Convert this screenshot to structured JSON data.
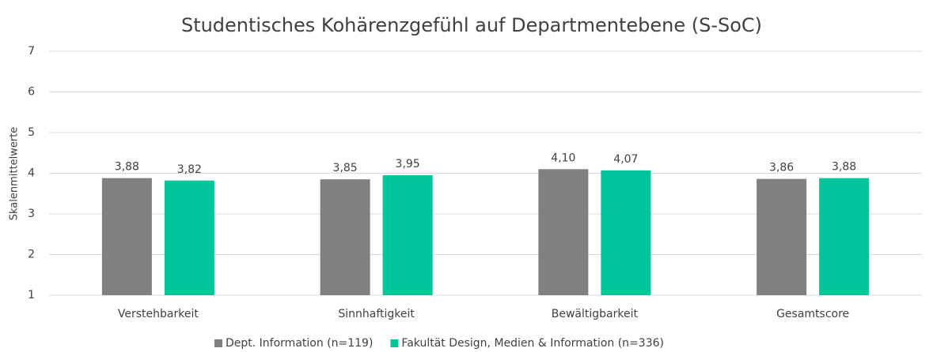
{
  "chart_data": {
    "type": "bar",
    "title": "Studentisches Kohärenzgefühl auf Departmentebene (S-SoC)",
    "y_label": "Skalenmittelwerte",
    "categories": [
      "Verstehbarkeit",
      "Sinnhaftigkeit",
      "Bewältigbarkeit",
      "Gesamtscore"
    ],
    "series": [
      {
        "name": "Dept. Information (n=119)",
        "color": "#808080",
        "values": [
          3.88,
          3.85,
          4.1,
          3.86
        ],
        "value_labels": [
          "3,88",
          "3,85",
          "4,10",
          "3,86"
        ]
      },
      {
        "name": "Fakultät Design, Medien & Information (n=336)",
        "color": "#00c49a",
        "values": [
          3.82,
          3.95,
          4.07,
          3.88
        ],
        "value_labels": [
          "3,82",
          "3,95",
          "4,07",
          "3,88"
        ]
      }
    ],
    "ylim": [
      1,
      7
    ],
    "yticks": [
      1,
      2,
      3,
      4,
      5,
      6,
      7
    ],
    "grid": true,
    "legend": "bottom"
  }
}
